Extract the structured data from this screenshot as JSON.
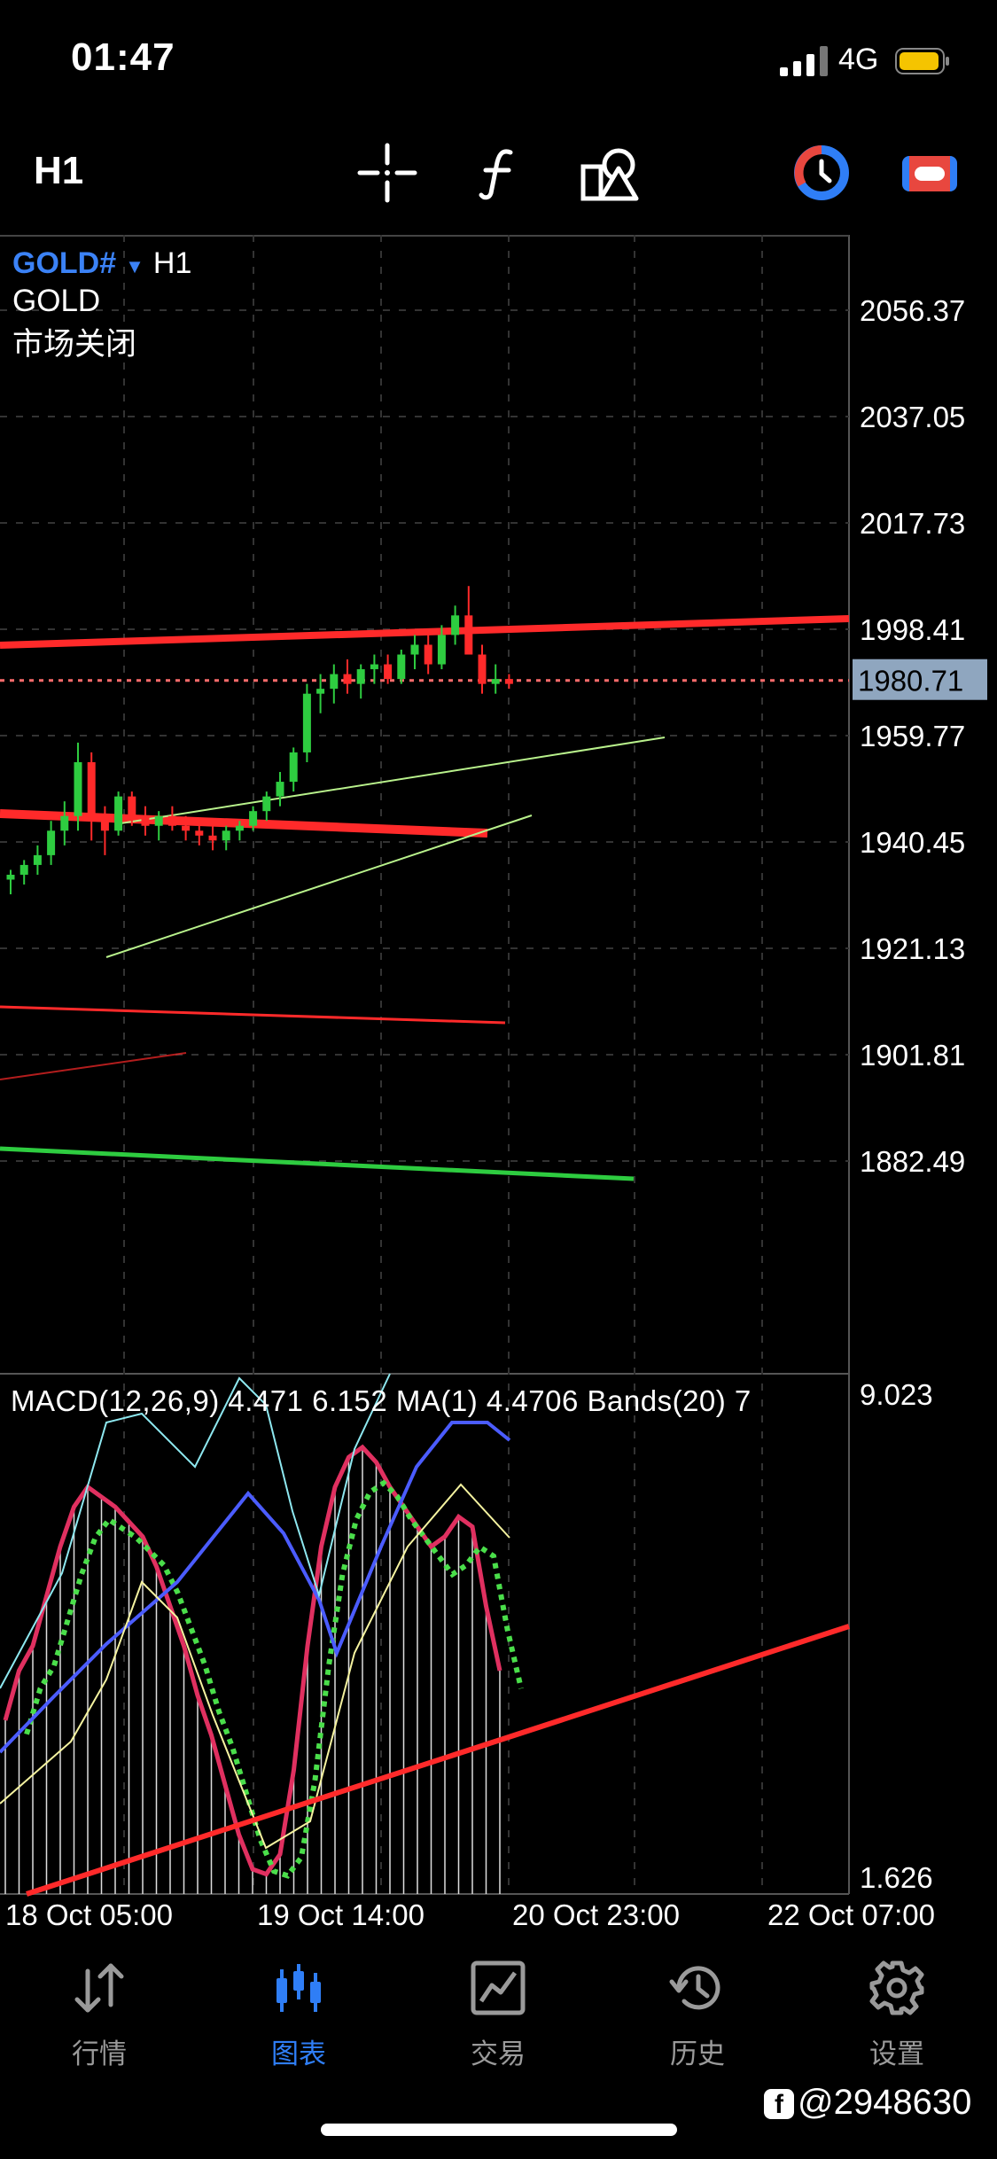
{
  "status_bar": {
    "time": "01:47",
    "network": "4G"
  },
  "toolbar": {
    "timeframe": "H1"
  },
  "chart_header": {
    "symbol": "GOLD#",
    "timeframe": "H1",
    "name": "GOLD",
    "market_status": "市场关闭"
  },
  "macd_label": "MACD(12,26,9) 4.471 6.152 MA(1) 4.4706 Bands(20) 7",
  "colors": {
    "accent": "#2f7ef6",
    "bull": "#2ecc40",
    "bear": "#ff2a2a",
    "price_tag": "#8fa6bf"
  },
  "chart_data": [
    {
      "type": "candlestick",
      "title": "",
      "y_axis_ticks": [
        "2056.37",
        "2037.05",
        "2017.73",
        "1998.41",
        "1959.77",
        "1940.45",
        "1921.13",
        "1901.81",
        "1882.49"
      ],
      "current_price": "1980.71",
      "ylim": [
        1872,
        2064
      ]
    },
    {
      "type": "line",
      "title": "",
      "y_axis_ticks": [
        "9.023",
        "1.626"
      ],
      "x_axis_ticks": [
        "18 Oct 05:00",
        "19 Oct 14:00",
        "20 Oct 23:00",
        "22 Oct 07:00"
      ]
    }
  ],
  "tabs": [
    {
      "label": "行情",
      "icon": "quotes-icon"
    },
    {
      "label": "图表",
      "icon": "chart-icon"
    },
    {
      "label": "交易",
      "icon": "trade-icon"
    },
    {
      "label": "历史",
      "icon": "history-icon"
    },
    {
      "label": "设置",
      "icon": "settings-icon"
    }
  ],
  "watermark": "@2948630"
}
